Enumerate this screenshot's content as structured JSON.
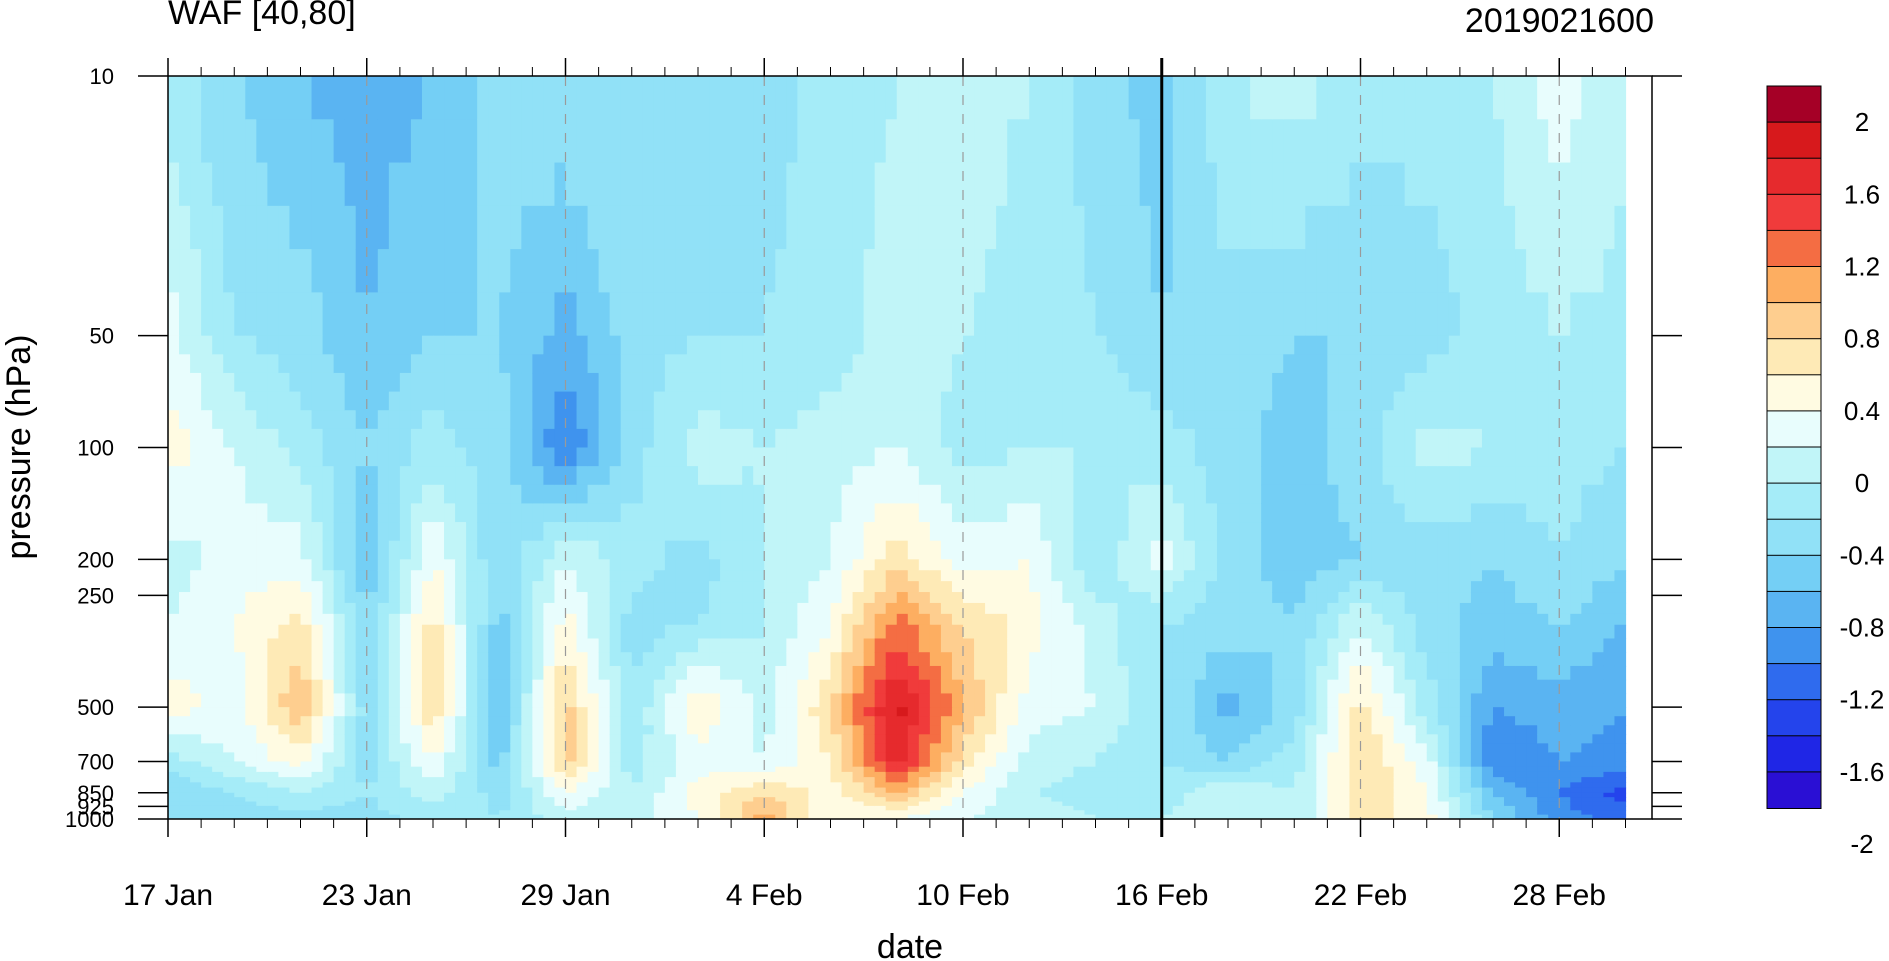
{
  "chart_data": {
    "type": "heatmap",
    "title_left": "WAF [40,80]",
    "title_right": "2019021600",
    "xlabel": "date",
    "ylabel": "pressure (hPa)",
    "x_ticks": [
      "17 Jan",
      "23 Jan",
      "29 Jan",
      "4 Feb",
      "10 Feb",
      "16 Feb",
      "22 Feb",
      "28 Feb"
    ],
    "y_axis": "log pressure, reversed (1000 at bottom, 10 at top)",
    "y_ticks": [
      10,
      50,
      100,
      200,
      250,
      500,
      700,
      850,
      925,
      1000
    ],
    "y_tick_labels": [
      "10",
      "50",
      "100",
      "200",
      "250",
      "500",
      "700",
      "850",
      "925",
      "1000"
    ],
    "colorbar": {
      "levels": [
        2,
        1.8,
        1.6,
        1.4,
        1.2,
        1,
        0.8,
        0.6,
        0.4,
        0.2,
        0,
        -0.2,
        -0.4,
        -0.6,
        -0.8,
        -1,
        -1.2,
        -1.4,
        -1.6,
        -1.8,
        -2
      ],
      "labels": [
        "2",
        "1.6",
        "1.2",
        "0.8",
        "0.4",
        "0",
        "-0.4",
        "-0.8",
        "-1.2",
        "-1.6",
        "-2"
      ],
      "colors": [
        "#a50026",
        "#d7191c",
        "#e62a2d",
        "#f03b3b",
        "#f46d43",
        "#fdae61",
        "#fece8f",
        "#feeab6",
        "#fffbe2",
        "#e8fdfd",
        "#c1f5f8",
        "#a5ecf8",
        "#91e1f7",
        "#74cff5",
        "#5ab4f2",
        "#3f93ee",
        "#2f6bee",
        "#2444ec",
        "#1f26e6",
        "#2a0fd4"
      ]
    },
    "vertical_line_date": "16 Feb",
    "dashed_grid": true,
    "grid_values": {
      "dates": [
        "17 Jan",
        "19 Jan",
        "21 Jan",
        "23 Jan",
        "25 Jan",
        "27 Jan",
        "29 Jan",
        "31 Jan",
        "2 Feb",
        "4 Feb",
        "6 Feb",
        "8 Feb",
        "10 Feb",
        "12 Feb",
        "14 Feb",
        "16 Feb",
        "18 Feb",
        "20 Feb",
        "22 Feb",
        "24 Feb",
        "26 Feb",
        "28 Feb",
        "2 Mar"
      ],
      "pressures": [
        10,
        50,
        100,
        200,
        300,
        500,
        700,
        850,
        1000
      ],
      "values": [
        [
          -0.3,
          -0.6,
          -0.8,
          -0.9,
          -0.8,
          -0.5,
          -0.4,
          -0.4,
          -0.5,
          -0.5,
          -0.3,
          -0.2,
          -0.1,
          -0.2,
          -0.5,
          -0.7,
          -0.2,
          -0.1,
          -0.3,
          -0.3,
          -0.2,
          0.1,
          -0.1
        ],
        [
          0.1,
          -0.4,
          -0.5,
          -0.8,
          -0.6,
          -0.6,
          -0.9,
          -0.5,
          -0.4,
          -0.4,
          -0.3,
          -0.1,
          -0.2,
          -0.3,
          -0.4,
          -0.6,
          -0.5,
          -0.6,
          -0.6,
          -0.5,
          -0.3,
          -0.2,
          -0.3
        ],
        [
          0.3,
          0.0,
          -0.3,
          -0.6,
          -0.3,
          -0.5,
          -1.2,
          -0.5,
          -0.1,
          -0.2,
          -0.1,
          0.0,
          -0.3,
          -0.2,
          -0.2,
          -0.3,
          -0.5,
          -0.7,
          -0.5,
          -0.1,
          -0.2,
          -0.3,
          -0.4
        ],
        [
          -0.1,
          0.1,
          0.1,
          -0.8,
          0.2,
          -0.6,
          0.0,
          -0.3,
          -0.5,
          -0.2,
          0.0,
          0.5,
          0.1,
          0.2,
          -0.4,
          0.1,
          -0.5,
          -0.7,
          -0.6,
          -0.5,
          -0.6,
          -0.4,
          -0.6
        ],
        [
          0.0,
          0.2,
          0.5,
          -0.6,
          0.5,
          -0.7,
          0.3,
          -0.5,
          -0.4,
          -0.2,
          0.2,
          1.1,
          0.6,
          0.3,
          -0.1,
          -0.4,
          -0.5,
          -0.6,
          0.0,
          -0.5,
          -0.7,
          -0.6,
          -0.8
        ],
        [
          0.3,
          0.1,
          0.8,
          -0.5,
          0.6,
          -0.8,
          0.7,
          -0.4,
          0.4,
          -0.1,
          0.6,
          1.7,
          0.8,
          0.1,
          0.0,
          -0.4,
          -0.9,
          -0.5,
          0.5,
          -0.3,
          -1.0,
          -0.9,
          -1.0
        ],
        [
          -0.3,
          0.0,
          0.3,
          -0.5,
          0.2,
          -0.7,
          0.7,
          -0.3,
          0.1,
          0.0,
          0.4,
          1.5,
          0.5,
          -0.1,
          -0.2,
          -0.4,
          -0.6,
          -0.3,
          0.6,
          0.1,
          -1.2,
          -1.0,
          -1.1
        ],
        [
          -0.6,
          -0.4,
          -0.2,
          -0.4,
          -0.1,
          -0.5,
          0.2,
          -0.2,
          0.3,
          0.6,
          0.3,
          0.8,
          0.2,
          -0.2,
          -0.3,
          -0.3,
          0.0,
          -0.2,
          0.6,
          0.2,
          -0.8,
          -1.2,
          -1.5
        ],
        [
          -0.6,
          -0.5,
          -0.5,
          -0.5,
          -0.3,
          -0.4,
          -0.1,
          -0.1,
          0.2,
          0.9,
          0.2,
          0.2,
          0.0,
          -0.1,
          -0.2,
          -0.2,
          -0.1,
          -0.2,
          0.5,
          0.3,
          -0.6,
          -1.1,
          -1.3
        ]
      ]
    }
  }
}
